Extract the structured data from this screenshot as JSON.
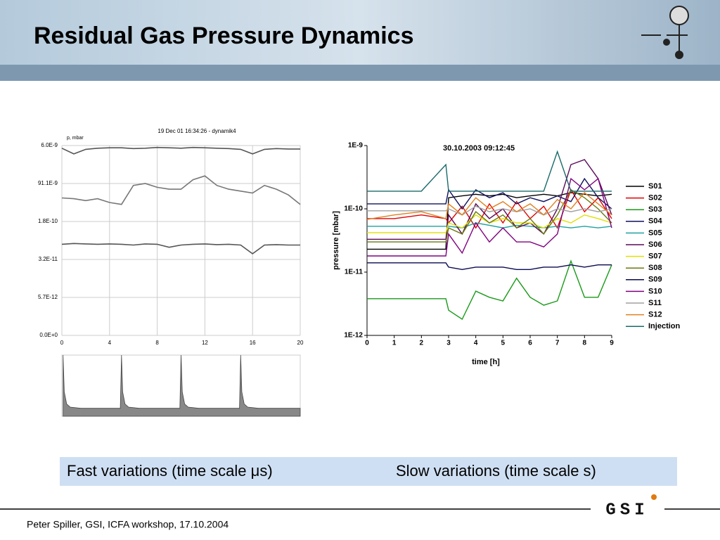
{
  "title": "Residual Gas Pressure Dynamics",
  "captions": [
    "Fast variations (time scale μs)",
    "Slow variations  (time scale s)"
  ],
  "footer": "Peter Spiller, GSI, ICFA workshop, 17.10.2004",
  "logo": "GSI",
  "chart_data": [
    {
      "type": "line",
      "title": "19 Dec 01 16:34:26 - dynamik4",
      "y_label": "p, mbar",
      "x": [
        0,
        1,
        2,
        3,
        4,
        5,
        6,
        7,
        8,
        9,
        10,
        11,
        12,
        13,
        14,
        15,
        16,
        17,
        18,
        19,
        20
      ],
      "xlim": [
        0,
        20
      ],
      "xticks": [
        0,
        4,
        8,
        12,
        16,
        20
      ],
      "ylim": [
        0,
        5
      ],
      "yticks": [
        {
          "value": 0,
          "label": "0.0E+0"
        },
        {
          "value": 1,
          "label": "5.7E-12"
        },
        {
          "value": 2,
          "label": "3.2E-11"
        },
        {
          "value": 3,
          "label": "1.8E-10"
        },
        {
          "value": 4,
          "label": "91.1E-9"
        },
        {
          "value": 5,
          "label": "6.0E-9"
        }
      ],
      "grid": true,
      "series": [
        {
          "color": "#555555",
          "values": [
            4.93,
            4.78,
            4.9,
            4.93,
            4.94,
            4.94,
            4.92,
            4.93,
            4.95,
            4.94,
            4.93,
            4.95,
            4.94,
            4.93,
            4.92,
            4.9,
            4.78,
            4.9,
            4.92,
            4.91,
            4.91
          ]
        },
        {
          "color": "#777777",
          "values": [
            3.62,
            3.6,
            3.55,
            3.6,
            3.5,
            3.45,
            3.95,
            4.0,
            3.9,
            3.85,
            3.85,
            4.1,
            4.2,
            3.95,
            3.85,
            3.8,
            3.75,
            3.95,
            3.85,
            3.7,
            3.45
          ]
        },
        {
          "color": "#555555",
          "values": [
            2.4,
            2.42,
            2.41,
            2.4,
            2.41,
            2.4,
            2.38,
            2.41,
            2.4,
            2.32,
            2.38,
            2.4,
            2.41,
            2.39,
            2.4,
            2.38,
            2.15,
            2.38,
            2.39,
            2.38,
            2.38
          ]
        }
      ]
    },
    {
      "type": "area",
      "x": [
        0.1,
        0.2,
        0.4,
        0.7,
        1.6,
        4.9,
        5,
        5.1,
        5.3,
        5.6,
        6.5,
        9.9,
        10,
        10.1,
        10.3,
        10.6,
        11.5,
        14.9,
        15,
        15.1,
        15.3,
        15.6,
        16.5,
        20
      ],
      "xlim": [
        0,
        20
      ],
      "ylim": [
        0,
        1
      ],
      "series": [
        {
          "color": "#888888",
          "values": [
            1,
            0.4,
            0.2,
            0.15,
            0.13,
            0.13,
            1,
            0.4,
            0.2,
            0.15,
            0.13,
            0.13,
            1,
            0.4,
            0.2,
            0.15,
            0.13,
            0.13,
            1,
            0.4,
            0.2,
            0.15,
            0.13,
            0.13
          ]
        }
      ]
    },
    {
      "type": "line",
      "title": "30.10.2003 09:12:45",
      "x_label": "time [h]",
      "y_label": "pressure [mbar]",
      "x": [
        0,
        1,
        2,
        2.9,
        3,
        3.5,
        4,
        4.5,
        5,
        5.5,
        6,
        6.5,
        7,
        7.5,
        8,
        8.5,
        9
      ],
      "xlim": [
        0,
        9
      ],
      "xticks": [
        0,
        1,
        2,
        3,
        4,
        5,
        6,
        7,
        8,
        9
      ],
      "ylim": [
        1e-12,
        1e-09
      ],
      "log_scale": true,
      "yticks": [
        {
          "value": 1e-12,
          "label": "1E-12"
        },
        {
          "value": 1e-11,
          "label": "1E-11"
        },
        {
          "value": 1e-10,
          "label": "1E-10"
        },
        {
          "value": 1e-09,
          "label": "1E-9"
        }
      ],
      "legend": "right",
      "series": [
        {
          "name": "S01",
          "color": "#000000",
          "values": [
            2.3e-11,
            2.3e-11,
            2.3e-11,
            2.3e-11,
            1.5e-10,
            1.6e-10,
            1.7e-10,
            1.6e-10,
            1.7e-10,
            1.5e-10,
            1.6e-10,
            1.7e-10,
            1.6e-10,
            1.8e-10,
            1.7e-10,
            1.6e-10,
            1.7e-10
          ]
        },
        {
          "name": "S02",
          "color": "#e00000",
          "values": [
            7e-11,
            7e-11,
            8e-11,
            7e-11,
            6e-11,
            1.1e-10,
            5e-11,
            1.2e-10,
            6e-11,
            1.3e-10,
            7e-11,
            1.1e-10,
            5e-11,
            2e-10,
            9e-11,
            1.5e-10,
            7e-11
          ]
        },
        {
          "name": "S03",
          "color": "#1a9a1a",
          "values": [
            3.8e-12,
            3.8e-12,
            3.8e-12,
            3.8e-12,
            2.5e-12,
            1.8e-12,
            5e-12,
            4e-12,
            3.5e-12,
            8e-12,
            4e-12,
            3e-12,
            3.5e-12,
            1.5e-11,
            4e-12,
            4e-12,
            1.3e-11
          ]
        },
        {
          "name": "S04",
          "color": "#101060",
          "values": [
            1.2e-10,
            1.2e-10,
            1.2e-10,
            1.2e-10,
            2e-10,
            1e-10,
            2e-10,
            1.5e-10,
            1.8e-10,
            1.2e-10,
            1.5e-10,
            1.3e-10,
            1.6e-10,
            1.3e-10,
            3e-10,
            1.5e-10,
            1e-10
          ]
        },
        {
          "name": "S05",
          "color": "#20a0a0",
          "values": [
            5.3e-11,
            5.3e-11,
            5.3e-11,
            5.3e-11,
            5.3e-11,
            5e-11,
            6e-11,
            5.5e-11,
            5e-11,
            5.5e-11,
            5.3e-11,
            5e-11,
            5.3e-11,
            5e-11,
            5.3e-11,
            5e-11,
            5.3e-11
          ]
        },
        {
          "name": "S06",
          "color": "#5a0a5a",
          "values": [
            3.3e-11,
            3.3e-11,
            3.3e-11,
            3.3e-11,
            8e-11,
            4e-11,
            1.2e-10,
            7e-11,
            1e-10,
            5e-11,
            6e-11,
            4e-11,
            1e-10,
            5e-10,
            6e-10,
            3e-10,
            8e-11
          ]
        },
        {
          "name": "S07",
          "color": "#e0e000",
          "values": [
            4.2e-11,
            4.2e-11,
            4.2e-11,
            4.2e-11,
            6e-11,
            5e-11,
            8e-11,
            6e-11,
            7e-11,
            6e-11,
            6e-11,
            5e-11,
            7e-11,
            6e-11,
            8e-11,
            7e-11,
            6e-11
          ]
        },
        {
          "name": "S08",
          "color": "#6b7a10",
          "values": [
            3e-11,
            3e-11,
            3e-11,
            3e-11,
            5e-11,
            4e-11,
            9e-11,
            6e-11,
            8e-11,
            5e-11,
            7e-11,
            4e-11,
            8e-11,
            2e-10,
            1.5e-10,
            1e-10,
            6e-11
          ]
        },
        {
          "name": "S09",
          "color": "#0a0a50",
          "values": [
            1.4e-11,
            1.4e-11,
            1.4e-11,
            1.4e-11,
            1.2e-11,
            1.1e-11,
            1.2e-11,
            1.2e-11,
            1.2e-11,
            1.1e-11,
            1.1e-11,
            1.2e-11,
            1.2e-11,
            1.3e-11,
            1.2e-11,
            1.3e-11,
            1.3e-11
          ]
        },
        {
          "name": "S10",
          "color": "#800080",
          "values": [
            1.8e-11,
            1.8e-11,
            1.8e-11,
            1.8e-11,
            4e-11,
            2e-11,
            6e-11,
            3e-11,
            5e-11,
            3e-11,
            3e-11,
            2.5e-11,
            4e-11,
            3e-10,
            2e-10,
            3e-10,
            5e-11
          ]
        },
        {
          "name": "S11",
          "color": "#a0a0a0",
          "values": [
            9.3e-11,
            9.3e-11,
            9.3e-11,
            9.3e-11,
            1e-10,
            8e-11,
            1.1e-10,
            9e-11,
            1e-10,
            9e-11,
            1e-10,
            8e-11,
            1e-10,
            9e-11,
            1e-10,
            9e-11,
            1e-10
          ]
        },
        {
          "name": "S12",
          "color": "#e08020",
          "values": [
            6.8e-11,
            8e-11,
            9e-11,
            7e-11,
            1.2e-10,
            8e-11,
            1.5e-10,
            1e-10,
            1.3e-10,
            9e-11,
            1.2e-10,
            8e-11,
            1.4e-10,
            1e-10,
            1.8e-10,
            1.2e-10,
            8e-11
          ]
        },
        {
          "name": "Injection",
          "color": "#1a6a6a",
          "values": [
            1.9e-10,
            1.9e-10,
            1.9e-10,
            5e-10,
            1.9e-10,
            1.9e-10,
            1.9e-10,
            1.9e-10,
            1.9e-10,
            1.9e-10,
            1.9e-10,
            1.9e-10,
            8e-10,
            1.9e-10,
            1.9e-10,
            1.9e-10,
            1.9e-10
          ]
        }
      ]
    }
  ]
}
